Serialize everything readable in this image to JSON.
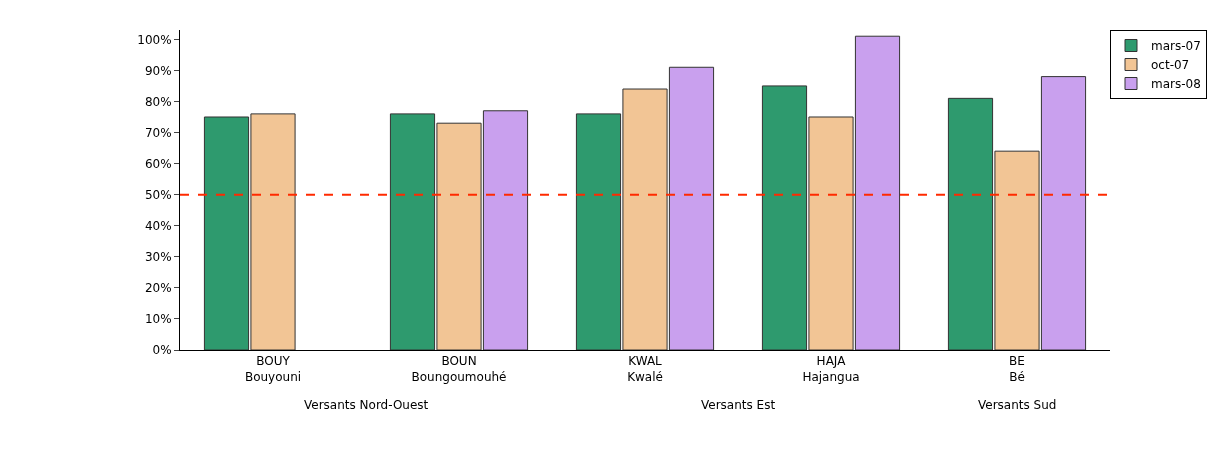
{
  "chart_data": {
    "type": "bar",
    "categories": [
      "BOUY\nBouyouni",
      "BOUN\nBoungoumouhé",
      "KWAL\nKwalé",
      "HAJA\nHajangua",
      "BE\nBé"
    ],
    "series": [
      {
        "name": "mars-07",
        "color": "#2e9a6e",
        "values": [
          75,
          76,
          76,
          85,
          81
        ]
      },
      {
        "name": "oct-07",
        "color": "#f2c595",
        "values": [
          76,
          73,
          84,
          75,
          64
        ]
      },
      {
        "name": "mars-08",
        "color": "#c9a0ee",
        "values": [
          null,
          77,
          91,
          101,
          88
        ]
      }
    ],
    "ylim": [
      0,
      103
    ],
    "yticks": [
      {
        "value": 0,
        "label": "0%"
      },
      {
        "value": 10,
        "label": "10%"
      },
      {
        "value": 20,
        "label": "20%"
      },
      {
        "value": 30,
        "label": "30%"
      },
      {
        "value": 40,
        "label": "40%"
      },
      {
        "value": 50,
        "label": "50%"
      },
      {
        "value": 60,
        "label": "60%"
      },
      {
        "value": 70,
        "label": "70%"
      },
      {
        "value": 80,
        "label": "80%"
      },
      {
        "value": 90,
        "label": "90%"
      },
      {
        "value": 100,
        "label": "100%"
      }
    ],
    "ref_lines": [
      {
        "axis": "y",
        "value": 50,
        "color": "#ff2a00",
        "line_style": "dashed"
      }
    ],
    "annotations": [
      "Versants Nord-Ouest",
      "Versants Est",
      "Versants Sud"
    ],
    "legend": "top right"
  }
}
